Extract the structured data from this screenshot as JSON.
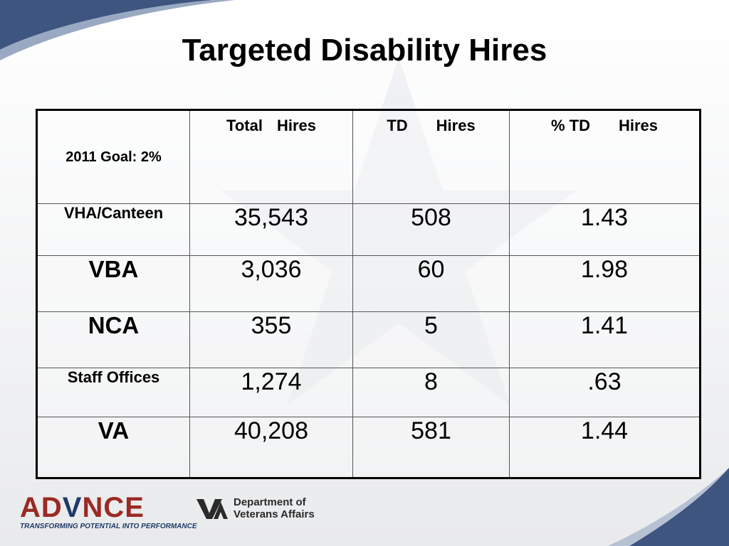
{
  "title": "Targeted Disability Hires",
  "table": {
    "goal_label": "2011 Goal: 2%",
    "headers": {
      "total": [
        "Total",
        "Hires"
      ],
      "td": [
        "TD",
        "Hires"
      ],
      "pct": [
        "% TD",
        "Hires"
      ]
    },
    "rows": [
      {
        "label": "VHA/Canteen",
        "total": "35,543",
        "td": "508",
        "pct": "1.43"
      },
      {
        "label": "VBA",
        "total": "3,036",
        "td": "60",
        "pct": "1.98"
      },
      {
        "label": "NCA",
        "total": "355",
        "td": "5",
        "pct": "1.41"
      },
      {
        "label": "Staff Offices",
        "total": "1,274",
        "td": "8",
        "pct": ".63"
      },
      {
        "label": "VA",
        "total": "40,208",
        "td": "581",
        "pct": "1.44"
      }
    ]
  },
  "footer": {
    "advance_logo": {
      "word_left": "AD",
      "word_v": "V",
      "word_right": "NCE",
      "tagline": "TRANSFORMING POTENTIAL INTO PERFORMANCE"
    },
    "va_logo": {
      "line1": "Department of",
      "line2": "Veterans Affairs"
    }
  },
  "colors": {
    "swoosh_dark": "#3e5580",
    "swoosh_light": "#9aa9c2",
    "advance_red": "#9a2a24",
    "advance_blue": "#1f3a68"
  }
}
